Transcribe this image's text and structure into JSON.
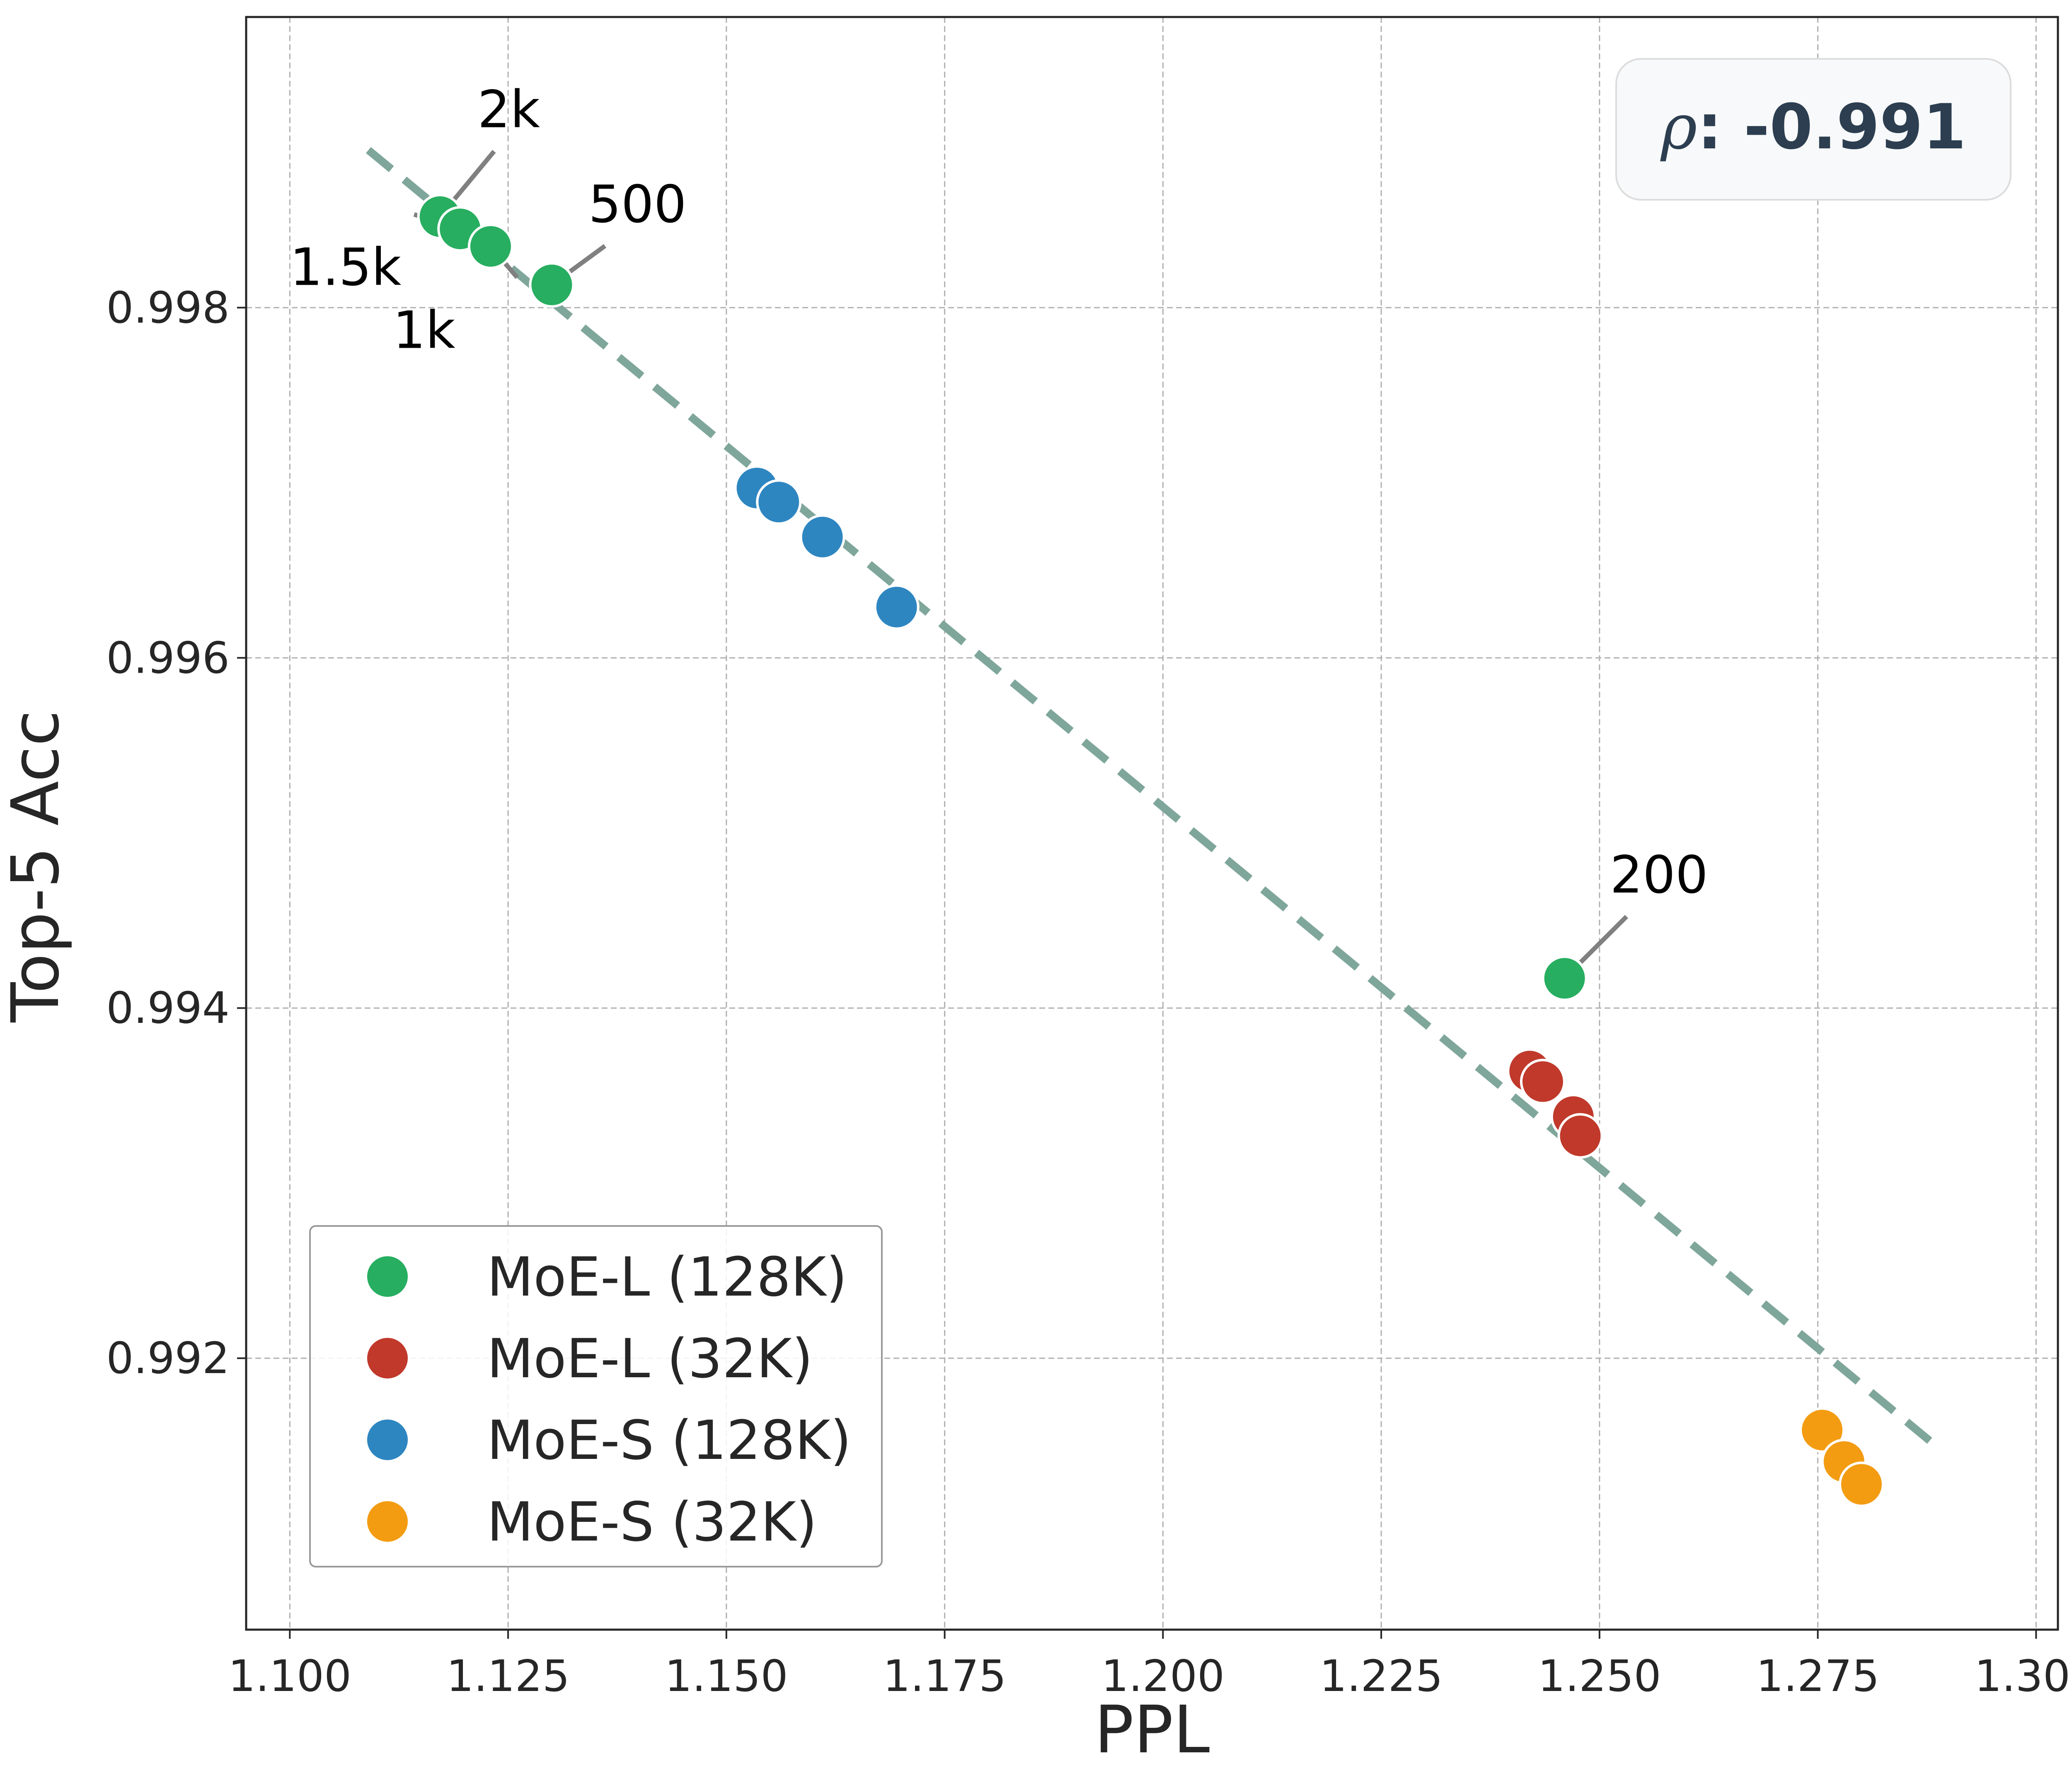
{
  "chart_data": {
    "type": "scatter",
    "title": "",
    "xlabel": "PPL",
    "ylabel": "Top-5 Acc",
    "xlim": [
      1.095,
      1.3025
    ],
    "ylim": [
      0.99045,
      0.99966
    ],
    "xticks": [
      1.1,
      1.125,
      1.15,
      1.175,
      1.2,
      1.225,
      1.25,
      1.275,
      1.3
    ],
    "xtick_labels": [
      "1.100",
      "1.125",
      "1.150",
      "1.175",
      "1.200",
      "1.225",
      "1.250",
      "1.275",
      "1.300"
    ],
    "yticks": [
      0.992,
      0.994,
      0.996,
      0.998
    ],
    "ytick_labels": [
      "0.992",
      "0.994",
      "0.996",
      "0.998"
    ],
    "grid": true,
    "legend_position": "lower-left",
    "series": [
      {
        "name": "MoE-L (128K)",
        "color": "#27ae60",
        "points": [
          {
            "x": 1.1172,
            "y": 0.99852,
            "label": "2k"
          },
          {
            "x": 1.1195,
            "y": 0.99845,
            "label": "1.5k"
          },
          {
            "x": 1.123,
            "y": 0.99835,
            "label": "1k"
          },
          {
            "x": 1.13,
            "y": 0.99813,
            "label": "500"
          },
          {
            "x": 1.246,
            "y": 0.99417,
            "label": "200"
          }
        ]
      },
      {
        "name": "MoE-L (32K)",
        "color": "#c0392b",
        "points": [
          {
            "x": 1.242,
            "y": 0.99364
          },
          {
            "x": 1.2435,
            "y": 0.99358
          },
          {
            "x": 1.247,
            "y": 0.99338
          },
          {
            "x": 1.2478,
            "y": 0.99327
          }
        ]
      },
      {
        "name": "MoE-S (128K)",
        "color": "#2e86c1",
        "points": [
          {
            "x": 1.1535,
            "y": 0.99697
          },
          {
            "x": 1.156,
            "y": 0.99689
          },
          {
            "x": 1.161,
            "y": 0.99669
          },
          {
            "x": 1.1695,
            "y": 0.99629
          }
        ]
      },
      {
        "name": "MoE-S (32K)",
        "color": "#f39c12",
        "points": [
          {
            "x": 1.2755,
            "y": 0.99159
          },
          {
            "x": 1.278,
            "y": 0.99141
          },
          {
            "x": 1.28,
            "y": 0.99128
          }
        ]
      }
    ],
    "trend_line": {
      "color": "#7fa69a",
      "style": "dashed",
      "from": {
        "x": 1.109,
        "y": 0.9989
      },
      "to": {
        "x": 1.289,
        "y": 0.99148
      }
    },
    "annotations": [
      {
        "text": "2k",
        "point": {
          "x": 1.1172,
          "y": 0.99852
        },
        "text_at": {
          "x": 1.1215,
          "y": 0.99903
        },
        "anchor": "start"
      },
      {
        "text": "1.5k",
        "point": {
          "x": 1.1195,
          "y": 0.99845
        },
        "text_at": {
          "x": 1.1,
          "y": 0.99813
        },
        "anchor": "start"
      },
      {
        "text": "1k",
        "point": {
          "x": 1.123,
          "y": 0.99835
        },
        "text_at": {
          "x": 1.1118,
          "y": 0.99777
        },
        "anchor": "start"
      },
      {
        "text": "500",
        "point": {
          "x": 1.13,
          "y": 0.99813
        },
        "text_at": {
          "x": 1.1342,
          "y": 0.99849
        },
        "anchor": "start"
      },
      {
        "text": "200",
        "point": {
          "x": 1.246,
          "y": 0.99417
        },
        "text_at": {
          "x": 1.2512,
          "y": 0.99466
        },
        "anchor": "start"
      }
    ],
    "correlation": {
      "symbol": "ρ",
      "separator": ": ",
      "value": "-0.991",
      "box_position": "top-right",
      "box_fill": "#f8f9fa",
      "box_stroke": "#dcdcdc"
    }
  }
}
